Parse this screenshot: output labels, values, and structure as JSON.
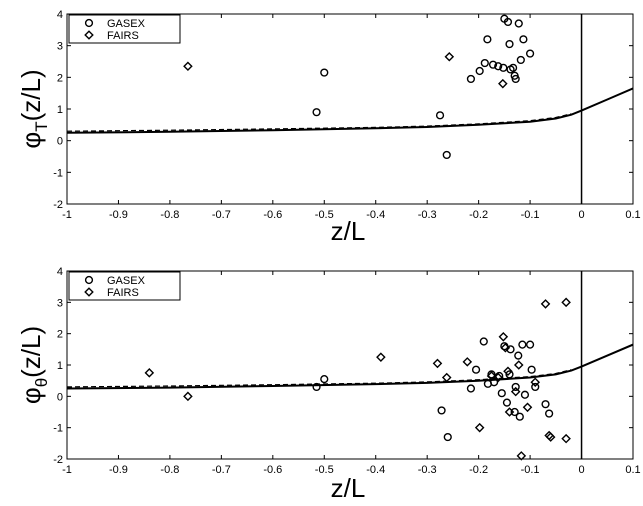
{
  "chart_data": [
    {
      "type": "scatter",
      "panel": "top",
      "ylabel": {
        "main": "φ",
        "sub": "T",
        "rest": "(z/L)"
      },
      "xlabel": "z/L",
      "xlim": [
        -1,
        0.1
      ],
      "ylim": [
        -2,
        4
      ],
      "xticks": [
        "-1",
        "-0.9",
        "-0.8",
        "-0.7",
        "-0.6",
        "-0.5",
        "-0.4",
        "-0.3",
        "-0.2",
        "-0.1",
        "0",
        "0.1"
      ],
      "yticks": [
        "-2",
        "-1",
        "0",
        "1",
        "2",
        "3",
        "4"
      ],
      "grid": false,
      "legend_position": "top-left",
      "vertical_line_x": 0,
      "series": [
        {
          "name": "GASEX",
          "marker": "circle",
          "points": [
            [
              -0.515,
              0.9
            ],
            [
              -0.5,
              2.15
            ],
            [
              -0.275,
              0.8
            ],
            [
              -0.262,
              -0.45
            ],
            [
              -0.215,
              1.95
            ],
            [
              -0.198,
              2.2
            ],
            [
              -0.188,
              2.45
            ],
            [
              -0.183,
              3.2
            ],
            [
              -0.172,
              2.4
            ],
            [
              -0.162,
              2.35
            ],
            [
              -0.152,
              2.3
            ],
            [
              -0.15,
              3.85
            ],
            [
              -0.143,
              3.75
            ],
            [
              -0.14,
              3.05
            ],
            [
              -0.138,
              2.25
            ],
            [
              -0.133,
              2.3
            ],
            [
              -0.13,
              2.05
            ],
            [
              -0.128,
              1.95
            ],
            [
              -0.122,
              3.7
            ],
            [
              -0.118,
              2.55
            ],
            [
              -0.113,
              3.2
            ],
            [
              -0.1,
              2.75
            ]
          ]
        },
        {
          "name": "FAIRS",
          "marker": "diamond",
          "points": [
            [
              -0.765,
              2.35
            ],
            [
              -0.257,
              2.65
            ],
            [
              -0.153,
              1.8
            ]
          ]
        }
      ],
      "curves": [
        {
          "style": "solid",
          "points": [
            [
              -1,
              0.25
            ],
            [
              -0.8,
              0.28
            ],
            [
              -0.6,
              0.33
            ],
            [
              -0.4,
              0.39
            ],
            [
              -0.3,
              0.43
            ],
            [
              -0.2,
              0.5
            ],
            [
              -0.1,
              0.6
            ],
            [
              -0.05,
              0.7
            ],
            [
              -0.02,
              0.82
            ],
            [
              0,
              0.95
            ],
            [
              0.05,
              1.3
            ],
            [
              0.1,
              1.65
            ]
          ]
        },
        {
          "style": "dashed",
          "points": [
            [
              -1,
              0.3
            ],
            [
              -0.8,
              0.33
            ],
            [
              -0.6,
              0.37
            ],
            [
              -0.4,
              0.42
            ],
            [
              -0.3,
              0.46
            ],
            [
              -0.2,
              0.53
            ],
            [
              -0.1,
              0.63
            ],
            [
              -0.05,
              0.73
            ],
            [
              -0.02,
              0.85
            ]
          ]
        }
      ]
    },
    {
      "type": "scatter",
      "panel": "bottom",
      "ylabel": {
        "main": "φ",
        "sub": "θ",
        "rest": "(z/L)"
      },
      "xlabel": "z/L",
      "xlim": [
        -1,
        0.1
      ],
      "ylim": [
        -2,
        4
      ],
      "xticks": [
        "-1",
        "-0.9",
        "-0.8",
        "-0.7",
        "-0.6",
        "-0.5",
        "-0.4",
        "-0.3",
        "-0.2",
        "-0.1",
        "0",
        "0.1"
      ],
      "yticks": [
        "-2",
        "-1",
        "0",
        "1",
        "2",
        "3",
        "4"
      ],
      "grid": false,
      "legend_position": "top-left",
      "vertical_line_x": 0,
      "series": [
        {
          "name": "GASEX",
          "marker": "circle",
          "points": [
            [
              -0.515,
              0.3
            ],
            [
              -0.5,
              0.55
            ],
            [
              -0.272,
              -0.45
            ],
            [
              -0.26,
              -1.3
            ],
            [
              -0.215,
              0.25
            ],
            [
              -0.205,
              0.85
            ],
            [
              -0.19,
              1.75
            ],
            [
              -0.182,
              0.4
            ],
            [
              -0.175,
              0.7
            ],
            [
              -0.17,
              0.45
            ],
            [
              -0.16,
              0.65
            ],
            [
              -0.155,
              0.1
            ],
            [
              -0.15,
              1.6
            ],
            [
              -0.145,
              -0.2
            ],
            [
              -0.14,
              0.7
            ],
            [
              -0.138,
              1.5
            ],
            [
              -0.13,
              -0.5
            ],
            [
              -0.128,
              0.3
            ],
            [
              -0.123,
              1.3
            ],
            [
              -0.12,
              -0.65
            ],
            [
              -0.115,
              1.65
            ],
            [
              -0.11,
              0.05
            ],
            [
              -0.1,
              1.65
            ],
            [
              -0.097,
              0.85
            ],
            [
              -0.09,
              0.3
            ],
            [
              -0.07,
              -0.25
            ],
            [
              -0.063,
              -0.55
            ]
          ]
        },
        {
          "name": "FAIRS",
          "marker": "diamond",
          "points": [
            [
              -0.84,
              0.75
            ],
            [
              -0.765,
              0.0
            ],
            [
              -0.39,
              1.25
            ],
            [
              -0.28,
              1.05
            ],
            [
              -0.262,
              0.6
            ],
            [
              -0.222,
              1.1
            ],
            [
              -0.198,
              -1.0
            ],
            [
              -0.175,
              0.65
            ],
            [
              -0.162,
              0.6
            ],
            [
              -0.152,
              1.9
            ],
            [
              -0.148,
              1.55
            ],
            [
              -0.143,
              0.8
            ],
            [
              -0.14,
              -0.5
            ],
            [
              -0.128,
              0.15
            ],
            [
              -0.122,
              1.0
            ],
            [
              -0.117,
              -1.9
            ],
            [
              -0.105,
              -0.35
            ],
            [
              -0.09,
              0.45
            ],
            [
              -0.07,
              2.95
            ],
            [
              -0.063,
              -1.25
            ],
            [
              -0.06,
              -1.3
            ],
            [
              -0.03,
              3.0
            ],
            [
              -0.03,
              -1.35
            ]
          ]
        }
      ],
      "curves": [
        {
          "style": "solid",
          "points": [
            [
              -1,
              0.25
            ],
            [
              -0.8,
              0.28
            ],
            [
              -0.6,
              0.33
            ],
            [
              -0.4,
              0.39
            ],
            [
              -0.3,
              0.43
            ],
            [
              -0.2,
              0.5
            ],
            [
              -0.1,
              0.6
            ],
            [
              -0.05,
              0.7
            ],
            [
              -0.02,
              0.82
            ],
            [
              0,
              0.95
            ],
            [
              0.05,
              1.3
            ],
            [
              0.1,
              1.65
            ]
          ]
        },
        {
          "style": "dashed",
          "points": [
            [
              -1,
              0.3
            ],
            [
              -0.8,
              0.33
            ],
            [
              -0.6,
              0.37
            ],
            [
              -0.4,
              0.42
            ],
            [
              -0.3,
              0.46
            ],
            [
              -0.2,
              0.53
            ],
            [
              -0.1,
              0.63
            ],
            [
              -0.05,
              0.73
            ],
            [
              -0.02,
              0.85
            ]
          ]
        }
      ]
    }
  ]
}
